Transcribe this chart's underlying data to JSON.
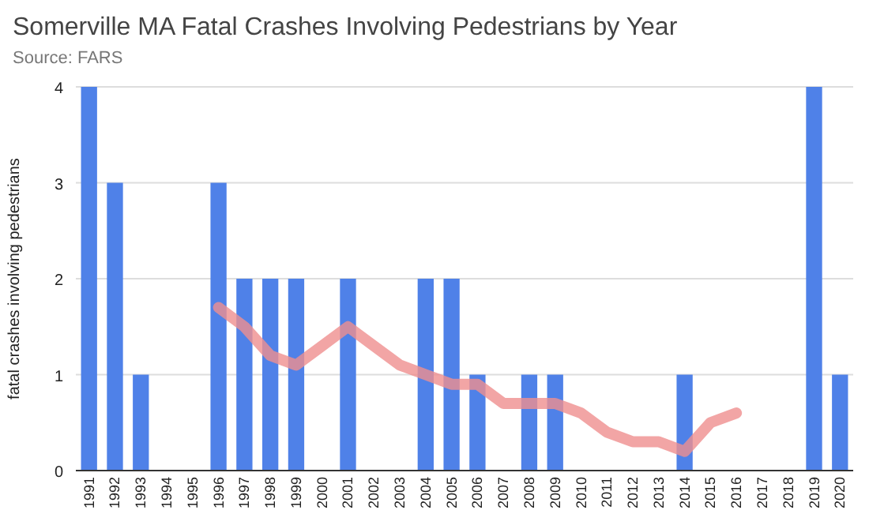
{
  "chart_data": {
    "type": "bar",
    "title": "Somerville MA Fatal Crashes Involving Pedestrians by Year",
    "subtitle": "Source: FARS",
    "ylabel": "fatal crashes involving pedestrians",
    "categories": [
      "1991",
      "1992",
      "1993",
      "1994",
      "1995",
      "1996",
      "1997",
      "1998",
      "1999",
      "2000",
      "2001",
      "2002",
      "2003",
      "2004",
      "2005",
      "2006",
      "2007",
      "2008",
      "2009",
      "2010",
      "2011",
      "2012",
      "2013",
      "2014",
      "2015",
      "2016",
      "2017",
      "2018",
      "2019",
      "2020"
    ],
    "series": [
      {
        "color": "#4f81e8",
        "values": [
          4,
          3,
          1,
          0,
          0,
          3,
          2,
          2,
          2,
          0,
          2,
          0,
          0,
          2,
          2,
          1,
          0,
          1,
          1,
          0,
          0,
          0,
          0,
          1,
          0,
          0,
          0,
          0,
          4,
          1
        ]
      },
      {
        "type": "line",
        "color": "#ef8e8e",
        "values": [
          null,
          null,
          null,
          null,
          null,
          1.7,
          1.5,
          1.2,
          1.1,
          1.3,
          1.5,
          1.3,
          1.1,
          1.0,
          0.9,
          0.9,
          0.7,
          0.7,
          0.7,
          0.6,
          0.4,
          0.3,
          0.3,
          0.2,
          0.5,
          0.6,
          null,
          null,
          null,
          null
        ]
      }
    ],
    "ylim": [
      0,
      4
    ],
    "yticks": [
      0,
      1,
      2,
      3,
      4
    ],
    "grid": "y",
    "line_style": "solid",
    "marker": "none"
  }
}
